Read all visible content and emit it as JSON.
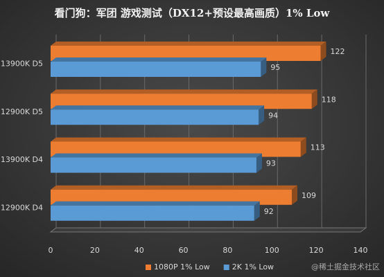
{
  "chart_data": {
    "type": "hbar",
    "title": "看门狗：军团 游戏测试（DX12+预设最高画质）1% Low",
    "categories": [
      "13900K D5",
      "12900K D5",
      "13900K D4",
      "12900K D4"
    ],
    "series": [
      {
        "name": "1080P 1% Low",
        "color": "#ed7d31",
        "values": [
          122,
          118,
          113,
          109
        ]
      },
      {
        "name": "2K 1% Low",
        "color": "#5b9bd5",
        "values": [
          95,
          94,
          93,
          92
        ]
      }
    ],
    "xlim": [
      0,
      140
    ],
    "xticks": [
      0,
      20,
      40,
      60,
      80,
      100,
      120,
      140
    ],
    "grid": true,
    "legend": "bottom",
    "watermark": "@稀土掘金技术社区"
  }
}
